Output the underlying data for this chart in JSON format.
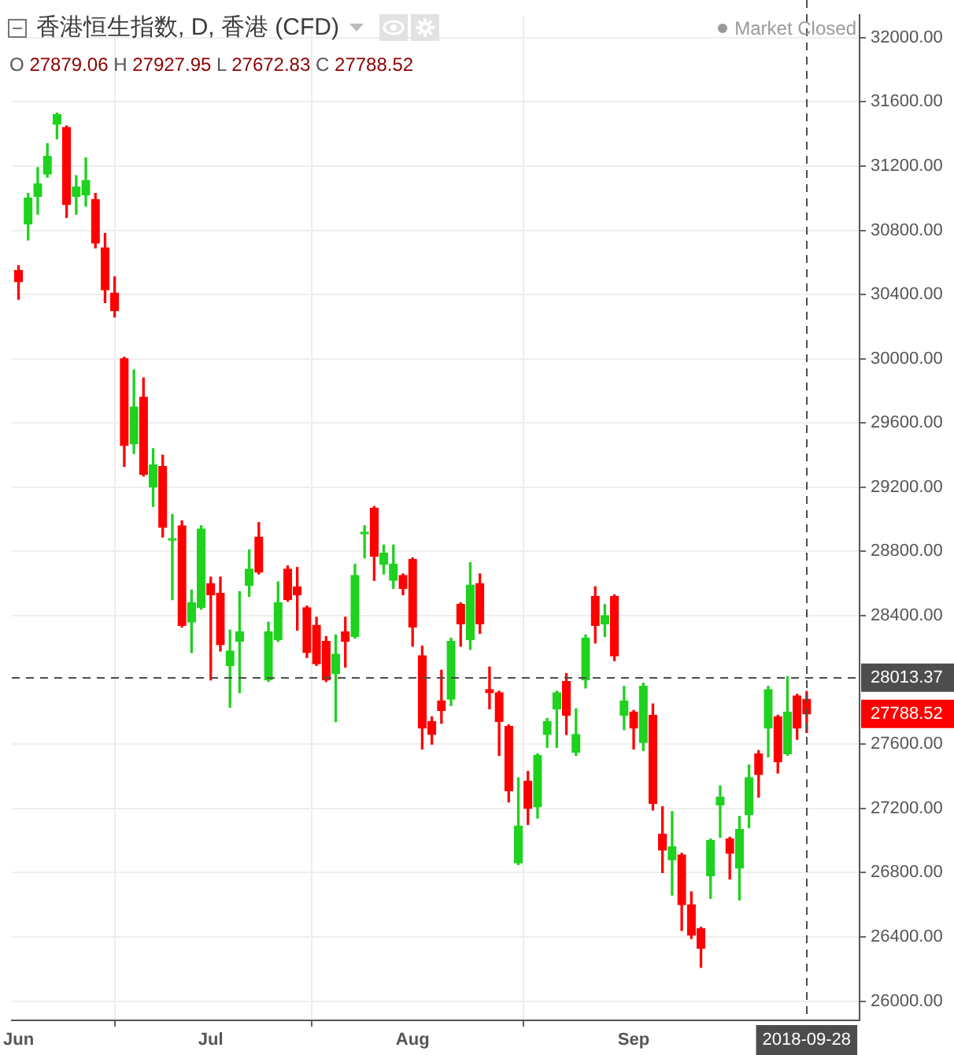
{
  "chart_data": {
    "type": "candlestick",
    "title": "香港恒生指数, D, 香港 (CFD)",
    "subtitle": "O 27879.06 H 27927.95 L 27672.83 C 27788.52",
    "annotations": [
      "Market Closed",
      "27788.52"
    ],
    "categories": [
      "Jun",
      null,
      null,
      null,
      null,
      null,
      null,
      null,
      null,
      null,
      null,
      null,
      null,
      null,
      null,
      null,
      null,
      null,
      null,
      null,
      "Jul",
      null,
      null,
      null,
      null,
      null,
      null,
      null,
      null,
      null,
      null,
      null,
      null,
      null,
      null,
      null,
      null,
      null,
      null,
      null,
      null,
      "Aug",
      null,
      null,
      null,
      null,
      null,
      null,
      null,
      null,
      null,
      null,
      null,
      null,
      null,
      null,
      null,
      null,
      null,
      null,
      null,
      null,
      null,
      null,
      "Sep",
      null,
      null,
      null,
      null,
      null,
      null,
      null,
      null,
      null,
      null,
      null,
      null,
      null,
      null,
      null,
      null,
      null,
      "2018-09-28"
    ],
    "ohlc": [
      [
        30550,
        30580,
        30370,
        30480
      ],
      [
        30840,
        31030,
        30740,
        31000
      ],
      [
        31010,
        31190,
        30900,
        31090
      ],
      [
        31150,
        31340,
        31130,
        31260
      ],
      [
        31460,
        31530,
        31370,
        31520
      ],
      [
        31440,
        31450,
        30880,
        30960
      ],
      [
        31010,
        31140,
        30900,
        31070
      ],
      [
        31020,
        31250,
        30950,
        31110
      ],
      [
        30990,
        31030,
        30690,
        30720
      ],
      [
        30690,
        30780,
        30350,
        30430
      ],
      [
        30410,
        30510,
        30260,
        30300
      ],
      [
        30000,
        30010,
        29330,
        29460
      ],
      [
        29470,
        29930,
        29410,
        29700
      ],
      [
        29760,
        29880,
        29270,
        29280
      ],
      [
        29200,
        29440,
        29080,
        29340
      ],
      [
        29330,
        29400,
        28890,
        28950
      ],
      [
        28870,
        29030,
        28500,
        28880
      ],
      [
        28960,
        28990,
        28330,
        28340
      ],
      [
        28360,
        28560,
        28170,
        28480
      ],
      [
        28450,
        28960,
        28440,
        28940
      ],
      [
        28600,
        28640,
        28000,
        28530
      ],
      [
        28540,
        28640,
        28180,
        28220
      ],
      [
        28090,
        28310,
        27830,
        28180
      ],
      [
        28240,
        28550,
        27920,
        28300
      ],
      [
        28590,
        28810,
        28520,
        28690
      ],
      [
        28890,
        28980,
        28660,
        28670
      ],
      [
        28000,
        28360,
        27990,
        28300
      ],
      [
        28250,
        28610,
        28240,
        28480
      ],
      [
        28690,
        28710,
        28490,
        28500
      ],
      [
        28580,
        28700,
        28310,
        28530
      ],
      [
        28450,
        28460,
        28140,
        28170
      ],
      [
        28340,
        28390,
        28090,
        28100
      ],
      [
        28240,
        28270,
        27990,
        28000
      ],
      [
        28040,
        28280,
        27740,
        28160
      ],
      [
        28300,
        28390,
        28080,
        28240
      ],
      [
        28270,
        28720,
        28260,
        28650
      ],
      [
        28910,
        28960,
        28760,
        28920
      ],
      [
        29070,
        29080,
        28620,
        28770
      ],
      [
        28720,
        28840,
        28660,
        28790
      ],
      [
        28620,
        28840,
        28570,
        28720
      ],
      [
        28650,
        28660,
        28530,
        28570
      ],
      [
        28750,
        28760,
        28210,
        28330
      ],
      [
        28150,
        28210,
        27570,
        27700
      ],
      [
        27740,
        27770,
        27600,
        27660
      ],
      [
        27870,
        28060,
        27730,
        27810
      ],
      [
        27880,
        28260,
        27840,
        28240
      ],
      [
        28470,
        28480,
        28210,
        28350
      ],
      [
        28250,
        28730,
        28190,
        28590
      ],
      [
        28600,
        28660,
        28290,
        28350
      ],
      [
        27940,
        28080,
        27820,
        27920
      ],
      [
        27920,
        27930,
        27530,
        27740
      ],
      [
        27710,
        27720,
        27240,
        27310
      ],
      [
        26860,
        27390,
        26850,
        27090
      ],
      [
        27370,
        27430,
        27100,
        27200
      ],
      [
        27210,
        27540,
        27140,
        27530
      ],
      [
        27660,
        27760,
        27580,
        27740
      ],
      [
        27820,
        27930,
        27580,
        27920
      ],
      [
        27990,
        28040,
        27660,
        27780
      ],
      [
        27550,
        27820,
        27530,
        27660
      ],
      [
        28000,
        28280,
        27950,
        28260
      ],
      [
        28520,
        28580,
        28230,
        28340
      ],
      [
        28350,
        28470,
        28270,
        28400
      ],
      [
        28520,
        28530,
        28120,
        28150
      ],
      [
        27780,
        27960,
        27690,
        27870
      ],
      [
        27800,
        27810,
        27570,
        27700
      ],
      [
        27610,
        27980,
        27560,
        27960
      ],
      [
        27780,
        27850,
        27190,
        27230
      ],
      [
        27040,
        27210,
        26800,
        26940
      ],
      [
        26880,
        27180,
        26660,
        26960
      ],
      [
        26910,
        26920,
        26440,
        26600
      ],
      [
        26600,
        26680,
        26390,
        26410
      ],
      [
        26450,
        26460,
        26210,
        26330
      ],
      [
        26780,
        27010,
        26640,
        27000
      ],
      [
        27220,
        27340,
        27020,
        27270
      ],
      [
        27010,
        27020,
        26760,
        26920
      ],
      [
        26830,
        27150,
        26630,
        27070
      ],
      [
        27160,
        27470,
        27080,
        27390
      ],
      [
        27540,
        27560,
        27270,
        27410
      ],
      [
        27700,
        27960,
        27520,
        27940
      ],
      [
        27770,
        27780,
        27420,
        27490
      ],
      [
        27540,
        28020,
        27530,
        27800
      ],
      [
        27900,
        27910,
        27630,
        27700
      ],
      [
        27879.06,
        27927.95,
        27672.83,
        27788.52
      ]
    ],
    "colors": [
      "#ff0000",
      "#1ed21e",
      "#1ed21e",
      "#1ed21e",
      "#1ed21e",
      "#ff0000",
      "#1ed21e",
      "#1ed21e",
      "#ff0000",
      "#ff0000",
      "#ff0000",
      "#ff0000",
      "#1ed21e",
      "#ff0000",
      "#1ed21e",
      "#ff0000",
      "#1ed21e",
      "#ff0000",
      "#1ed21e",
      "#1ed21e",
      "#ff0000",
      "#ff0000",
      "#1ed21e",
      "#1ed21e",
      "#1ed21e",
      "#ff0000",
      "#1ed21e",
      "#1ed21e",
      "#ff0000",
      "#ff0000",
      "#ff0000",
      "#ff0000",
      "#ff0000",
      "#1ed21e",
      "#ff0000",
      "#1ed21e",
      "#1ed21e",
      "#ff0000",
      "#1ed21e",
      "#1ed21e",
      "#ff0000",
      "#ff0000",
      "#ff0000",
      "#ff0000",
      "#ff0000",
      "#1ed21e",
      "#ff0000",
      "#1ed21e",
      "#ff0000",
      "#ff0000",
      "#ff0000",
      "#ff0000",
      "#1ed21e",
      "#ff0000",
      "#1ed21e",
      "#1ed21e",
      "#1ed21e",
      "#ff0000",
      "#1ed21e",
      "#1ed21e",
      "#ff0000",
      "#1ed21e",
      "#ff0000",
      "#1ed21e",
      "#ff0000",
      "#1ed21e",
      "#ff0000",
      "#ff0000",
      "#1ed21e",
      "#ff0000",
      "#ff0000",
      "#ff0000",
      "#1ed21e",
      "#1ed21e",
      "#ff0000",
      "#1ed21e",
      "#1ed21e",
      "#ff0000",
      "#1ed21e",
      "#ff0000",
      "#1ed21e",
      "#ff0000",
      "#ff0000"
    ],
    "ylim": [
      25880,
      32140
    ],
    "yticks": [
      {
        "value": 26000,
        "label": "26000.00"
      },
      {
        "value": 26400,
        "label": "26400.00"
      },
      {
        "value": 26800,
        "label": "26800.00"
      },
      {
        "value": 27200,
        "label": "27200.00"
      },
      {
        "value": 27600,
        "label": "27600.00"
      },
      {
        "value": 28400,
        "label": "28400.00"
      },
      {
        "value": 28800,
        "label": "28800.00"
      },
      {
        "value": 29200,
        "label": "29200.00"
      },
      {
        "value": 29600,
        "label": "29600.00"
      },
      {
        "value": 30000,
        "label": "30000.00"
      },
      {
        "value": 30400,
        "label": "30400.00"
      },
      {
        "value": 30800,
        "label": "30800.00"
      },
      {
        "value": 31200,
        "label": "31200.00"
      },
      {
        "value": 31600,
        "label": "31600.00"
      },
      {
        "value": 32000,
        "label": "32000.00"
      }
    ],
    "grid": true,
    "ref_lines": [
      {
        "axis": "y",
        "value": 28013.37,
        "label": "28013.37",
        "color": "#4d4d4d",
        "line_style": "dashed"
      },
      {
        "axis": "x",
        "value": "2018-09-28",
        "color": "#4d4d4d",
        "line_style": "dashed"
      }
    ]
  }
}
